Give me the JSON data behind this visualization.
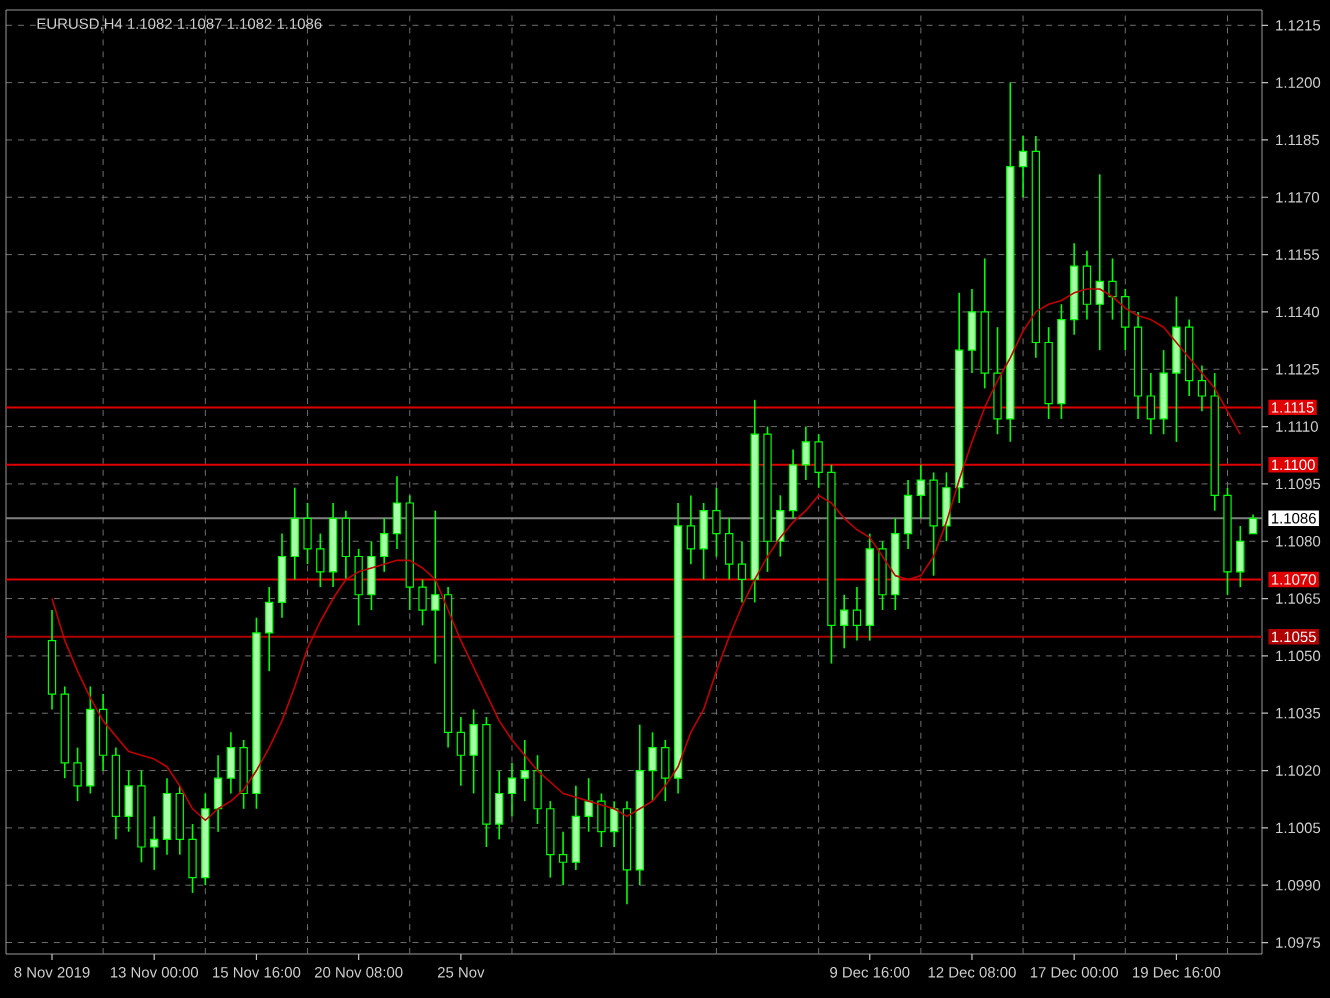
{
  "chart_data": {
    "type": "candlestick",
    "title": "EURUSD,H4  1.1082 1.1087 1.1082 1.1086",
    "categories": [
      "8 Nov 2019",
      null,
      null,
      null,
      null,
      null,
      null,
      null,
      "13 Nov 00:00",
      null,
      null,
      null,
      null,
      null,
      null,
      null,
      "15 Nov 16:00",
      null,
      null,
      null,
      null,
      null,
      null,
      null,
      "20 Nov 08:00",
      null,
      null,
      null,
      null,
      null,
      null,
      null,
      "25 Nov",
      null,
      null,
      null,
      null,
      null,
      null,
      null,
      null,
      null,
      null,
      null,
      null,
      null,
      null,
      null,
      null,
      null,
      null,
      null,
      null,
      null,
      null,
      null,
      null,
      null,
      null,
      null,
      null,
      null,
      null,
      null,
      "9 Dec 16:00",
      null,
      null,
      null,
      null,
      null,
      null,
      null,
      "12 Dec 08:00",
      null,
      null,
      null,
      null,
      null,
      null,
      null,
      "17 Dec 00:00",
      null,
      null,
      null,
      null,
      null,
      null,
      null,
      "19 Dec 16:00",
      null,
      null,
      null,
      null,
      null,
      null
    ],
    "ohlc": [
      [
        1.1054,
        1.1062,
        1.1036,
        1.104
      ],
      [
        1.104,
        1.1042,
        1.1018,
        1.1022
      ],
      [
        1.1022,
        1.1026,
        1.1012,
        1.1016
      ],
      [
        1.1016,
        1.1042,
        1.1014,
        1.1036
      ],
      [
        1.1036,
        1.104,
        1.102,
        1.1024
      ],
      [
        1.1024,
        1.1026,
        1.1002,
        1.1008
      ],
      [
        1.1008,
        1.102,
        1.1004,
        1.1016
      ],
      [
        1.1016,
        1.102,
        1.0996,
        1.1
      ],
      [
        1.1,
        1.1008,
        1.0994,
        1.1002
      ],
      [
        1.1002,
        1.1018,
        1.0998,
        1.1014
      ],
      [
        1.1014,
        1.1016,
        1.0998,
        1.1002
      ],
      [
        1.1002,
        1.1006,
        1.0988,
        1.0992
      ],
      [
        1.0992,
        1.1014,
        1.099,
        1.101
      ],
      [
        1.101,
        1.1024,
        1.1004,
        1.1018
      ],
      [
        1.1018,
        1.103,
        1.1014,
        1.1026
      ],
      [
        1.1026,
        1.1028,
        1.101,
        1.1014
      ],
      [
        1.1014,
        1.106,
        1.101,
        1.1056
      ],
      [
        1.1056,
        1.1068,
        1.1046,
        1.1064
      ],
      [
        1.1064,
        1.1082,
        1.106,
        1.1076
      ],
      [
        1.1076,
        1.1094,
        1.107,
        1.1086
      ],
      [
        1.1086,
        1.109,
        1.1074,
        1.1078
      ],
      [
        1.1078,
        1.1082,
        1.1068,
        1.1072
      ],
      [
        1.1072,
        1.109,
        1.1068,
        1.1086
      ],
      [
        1.1086,
        1.1088,
        1.107,
        1.1076
      ],
      [
        1.1076,
        1.1078,
        1.1058,
        1.1066
      ],
      [
        1.1066,
        1.108,
        1.1062,
        1.1076
      ],
      [
        1.1076,
        1.1086,
        1.1072,
        1.1082
      ],
      [
        1.1082,
        1.1097,
        1.1078,
        1.109
      ],
      [
        1.109,
        1.1092,
        1.1062,
        1.1068
      ],
      [
        1.1068,
        1.107,
        1.1058,
        1.1062
      ],
      [
        1.1062,
        1.1088,
        1.1048,
        1.1066
      ],
      [
        1.1066,
        1.1068,
        1.1026,
        1.103
      ],
      [
        1.103,
        1.1034,
        1.1016,
        1.1024
      ],
      [
        1.1024,
        1.1036,
        1.1014,
        1.1032
      ],
      [
        1.1032,
        1.1034,
        1.1,
        1.1006
      ],
      [
        1.1006,
        1.102,
        1.1002,
        1.1014
      ],
      [
        1.1014,
        1.1022,
        1.1008,
        1.1018
      ],
      [
        1.1018,
        1.1028,
        1.1012,
        1.102
      ],
      [
        1.102,
        1.1024,
        1.1006,
        1.101
      ],
      [
        1.101,
        1.1012,
        1.0992,
        1.0998
      ],
      [
        1.0998,
        1.1004,
        1.099,
        1.0996
      ],
      [
        1.0996,
        1.1016,
        1.0994,
        1.1008
      ],
      [
        1.1008,
        1.1018,
        1.1004,
        1.1012
      ],
      [
        1.1012,
        1.1014,
        1.1,
        1.1004
      ],
      [
        1.1004,
        1.1012,
        1.1,
        1.101
      ],
      [
        1.101,
        1.1012,
        1.0985,
        1.0994
      ],
      [
        1.0994,
        1.1032,
        1.099,
        1.102
      ],
      [
        1.102,
        1.103,
        1.1012,
        1.1026
      ],
      [
        1.1026,
        1.1028,
        1.1012,
        1.1018
      ],
      [
        1.1018,
        1.109,
        1.1014,
        1.1084
      ],
      [
        1.1084,
        1.1092,
        1.1074,
        1.1078
      ],
      [
        1.1078,
        1.109,
        1.107,
        1.1088
      ],
      [
        1.1088,
        1.1094,
        1.1076,
        1.1082
      ],
      [
        1.1082,
        1.1086,
        1.107,
        1.1074
      ],
      [
        1.1074,
        1.108,
        1.1064,
        1.107
      ],
      [
        1.107,
        1.1117,
        1.1064,
        1.1108
      ],
      [
        1.1108,
        1.111,
        1.1072,
        1.108
      ],
      [
        1.108,
        1.1092,
        1.1076,
        1.1088
      ],
      [
        1.1088,
        1.1104,
        1.1086,
        1.11
      ],
      [
        1.11,
        1.111,
        1.1096,
        1.1106
      ],
      [
        1.1106,
        1.1108,
        1.1094,
        1.1098
      ],
      [
        1.1098,
        1.11,
        1.1048,
        1.1058
      ],
      [
        1.1058,
        1.1066,
        1.1052,
        1.1062
      ],
      [
        1.1062,
        1.1068,
        1.1054,
        1.1058
      ],
      [
        1.1058,
        1.1082,
        1.1054,
        1.1078
      ],
      [
        1.1078,
        1.108,
        1.1062,
        1.1066
      ],
      [
        1.1066,
        1.1086,
        1.1062,
        1.1082
      ],
      [
        1.1082,
        1.1096,
        1.1078,
        1.1092
      ],
      [
        1.1092,
        1.11,
        1.1086,
        1.1096
      ],
      [
        1.1096,
        1.1098,
        1.1071,
        1.1084
      ],
      [
        1.1084,
        1.1098,
        1.108,
        1.1094
      ],
      [
        1.1094,
        1.1145,
        1.109,
        1.113
      ],
      [
        1.113,
        1.1146,
        1.1124,
        1.114
      ],
      [
        1.114,
        1.1154,
        1.112,
        1.1124
      ],
      [
        1.1124,
        1.1136,
        1.1108,
        1.1112
      ],
      [
        1.1112,
        1.12,
        1.1106,
        1.1178
      ],
      [
        1.1178,
        1.1186,
        1.117,
        1.1182
      ],
      [
        1.1182,
        1.1186,
        1.1128,
        1.1132
      ],
      [
        1.1132,
        1.1136,
        1.1112,
        1.1116
      ],
      [
        1.1116,
        1.1142,
        1.1112,
        1.1138
      ],
      [
        1.1138,
        1.1158,
        1.1134,
        1.1152
      ],
      [
        1.1152,
        1.1156,
        1.1138,
        1.1142
      ],
      [
        1.1142,
        1.1176,
        1.113,
        1.1148
      ],
      [
        1.1148,
        1.1154,
        1.1138,
        1.1144
      ],
      [
        1.1144,
        1.1146,
        1.113,
        1.1136
      ],
      [
        1.1136,
        1.114,
        1.1112,
        1.1118
      ],
      [
        1.1118,
        1.1124,
        1.1108,
        1.1112
      ],
      [
        1.1112,
        1.113,
        1.1108,
        1.1124
      ],
      [
        1.1124,
        1.1144,
        1.1106,
        1.1136
      ],
      [
        1.1136,
        1.1138,
        1.1118,
        1.1122
      ],
      [
        1.1122,
        1.1126,
        1.1114,
        1.1118
      ],
      [
        1.1118,
        1.1124,
        1.1088,
        1.1092
      ],
      [
        1.1092,
        1.1094,
        1.1066,
        1.1072
      ],
      [
        1.1072,
        1.1084,
        1.1068,
        1.108
      ],
      [
        1.1082,
        1.1087,
        1.1082,
        1.1086
      ]
    ],
    "series": [
      {
        "type": "line",
        "color": "#c00000",
        "values": [
          1.1065,
          1.1054,
          1.1046,
          1.1039,
          1.1033,
          1.1029,
          1.1025,
          1.1024,
          1.1023,
          1.1021,
          1.1016,
          1.101,
          1.1007,
          1.101,
          1.1012,
          1.1015,
          1.102,
          1.1026,
          1.1033,
          1.1042,
          1.1052,
          1.1059,
          1.1065,
          1.107,
          1.1072,
          1.1073,
          1.1074,
          1.1075,
          1.1075,
          1.1073,
          1.107,
          1.1062,
          1.1054,
          1.1047,
          1.104,
          1.1033,
          1.1028,
          1.1024,
          1.102,
          1.1017,
          1.1014,
          1.1013,
          1.1012,
          1.1011,
          1.101,
          1.1008,
          1.101,
          1.1012,
          1.1016,
          1.1021,
          1.103,
          1.1036,
          1.1046,
          1.1055,
          1.1063,
          1.107,
          1.1076,
          1.1081,
          1.1085,
          1.1088,
          1.1092,
          1.109,
          1.1086,
          1.1083,
          1.1081,
          1.1076,
          1.1071,
          1.107,
          1.1071,
          1.1076,
          1.1085,
          1.1096,
          1.1106,
          1.1115,
          1.1122,
          1.1128,
          1.1135,
          1.114,
          1.1142,
          1.1143,
          1.1145,
          1.1146,
          1.1146,
          1.1144,
          1.1141,
          1.1139,
          1.1138,
          1.1136,
          1.1132,
          1.1128,
          1.1124,
          1.112,
          1.1114,
          1.1108,
          null
        ]
      }
    ],
    "ylim": [
      1.0972,
      1.1219
    ],
    "yticks": [
      {
        "value": 1.0975,
        "label": "1.0975"
      },
      {
        "value": 1.099,
        "label": "1.0990"
      },
      {
        "value": 1.1005,
        "label": "1.1005"
      },
      {
        "value": 1.102,
        "label": "1.1020"
      },
      {
        "value": 1.1035,
        "label": "1.1035"
      },
      {
        "value": 1.105,
        "label": "1.1050"
      },
      {
        "value": 1.1065,
        "label": "1.1065"
      },
      {
        "value": 1.108,
        "label": "1.1080"
      },
      {
        "value": 1.1095,
        "label": "1.1095"
      },
      {
        "value": 1.111,
        "label": "1.1110"
      },
      {
        "value": 1.1125,
        "label": "1.1125"
      },
      {
        "value": 1.114,
        "label": "1.1140"
      },
      {
        "value": 1.1155,
        "label": "1.1155"
      },
      {
        "value": 1.117,
        "label": "1.1170"
      },
      {
        "value": 1.1185,
        "label": "1.1185"
      },
      {
        "value": 1.12,
        "label": "1.1200"
      },
      {
        "value": 1.1215,
        "label": "1.1215"
      }
    ],
    "ref_lines": [
      {
        "axis": "y",
        "value": 1.1115,
        "label": "1.1115",
        "color": "#e00000"
      },
      {
        "axis": "y",
        "value": 1.11,
        "label": "1.1100",
        "color": "#e00000"
      },
      {
        "axis": "y",
        "value": 1.1086,
        "label": "1.1086",
        "color": "#808080"
      },
      {
        "axis": "y",
        "value": 1.107,
        "label": "1.1070",
        "color": "#e00000"
      },
      {
        "axis": "y",
        "value": 1.1055,
        "label": "1.1055",
        "color": "#b00000"
      }
    ],
    "grid": true
  }
}
